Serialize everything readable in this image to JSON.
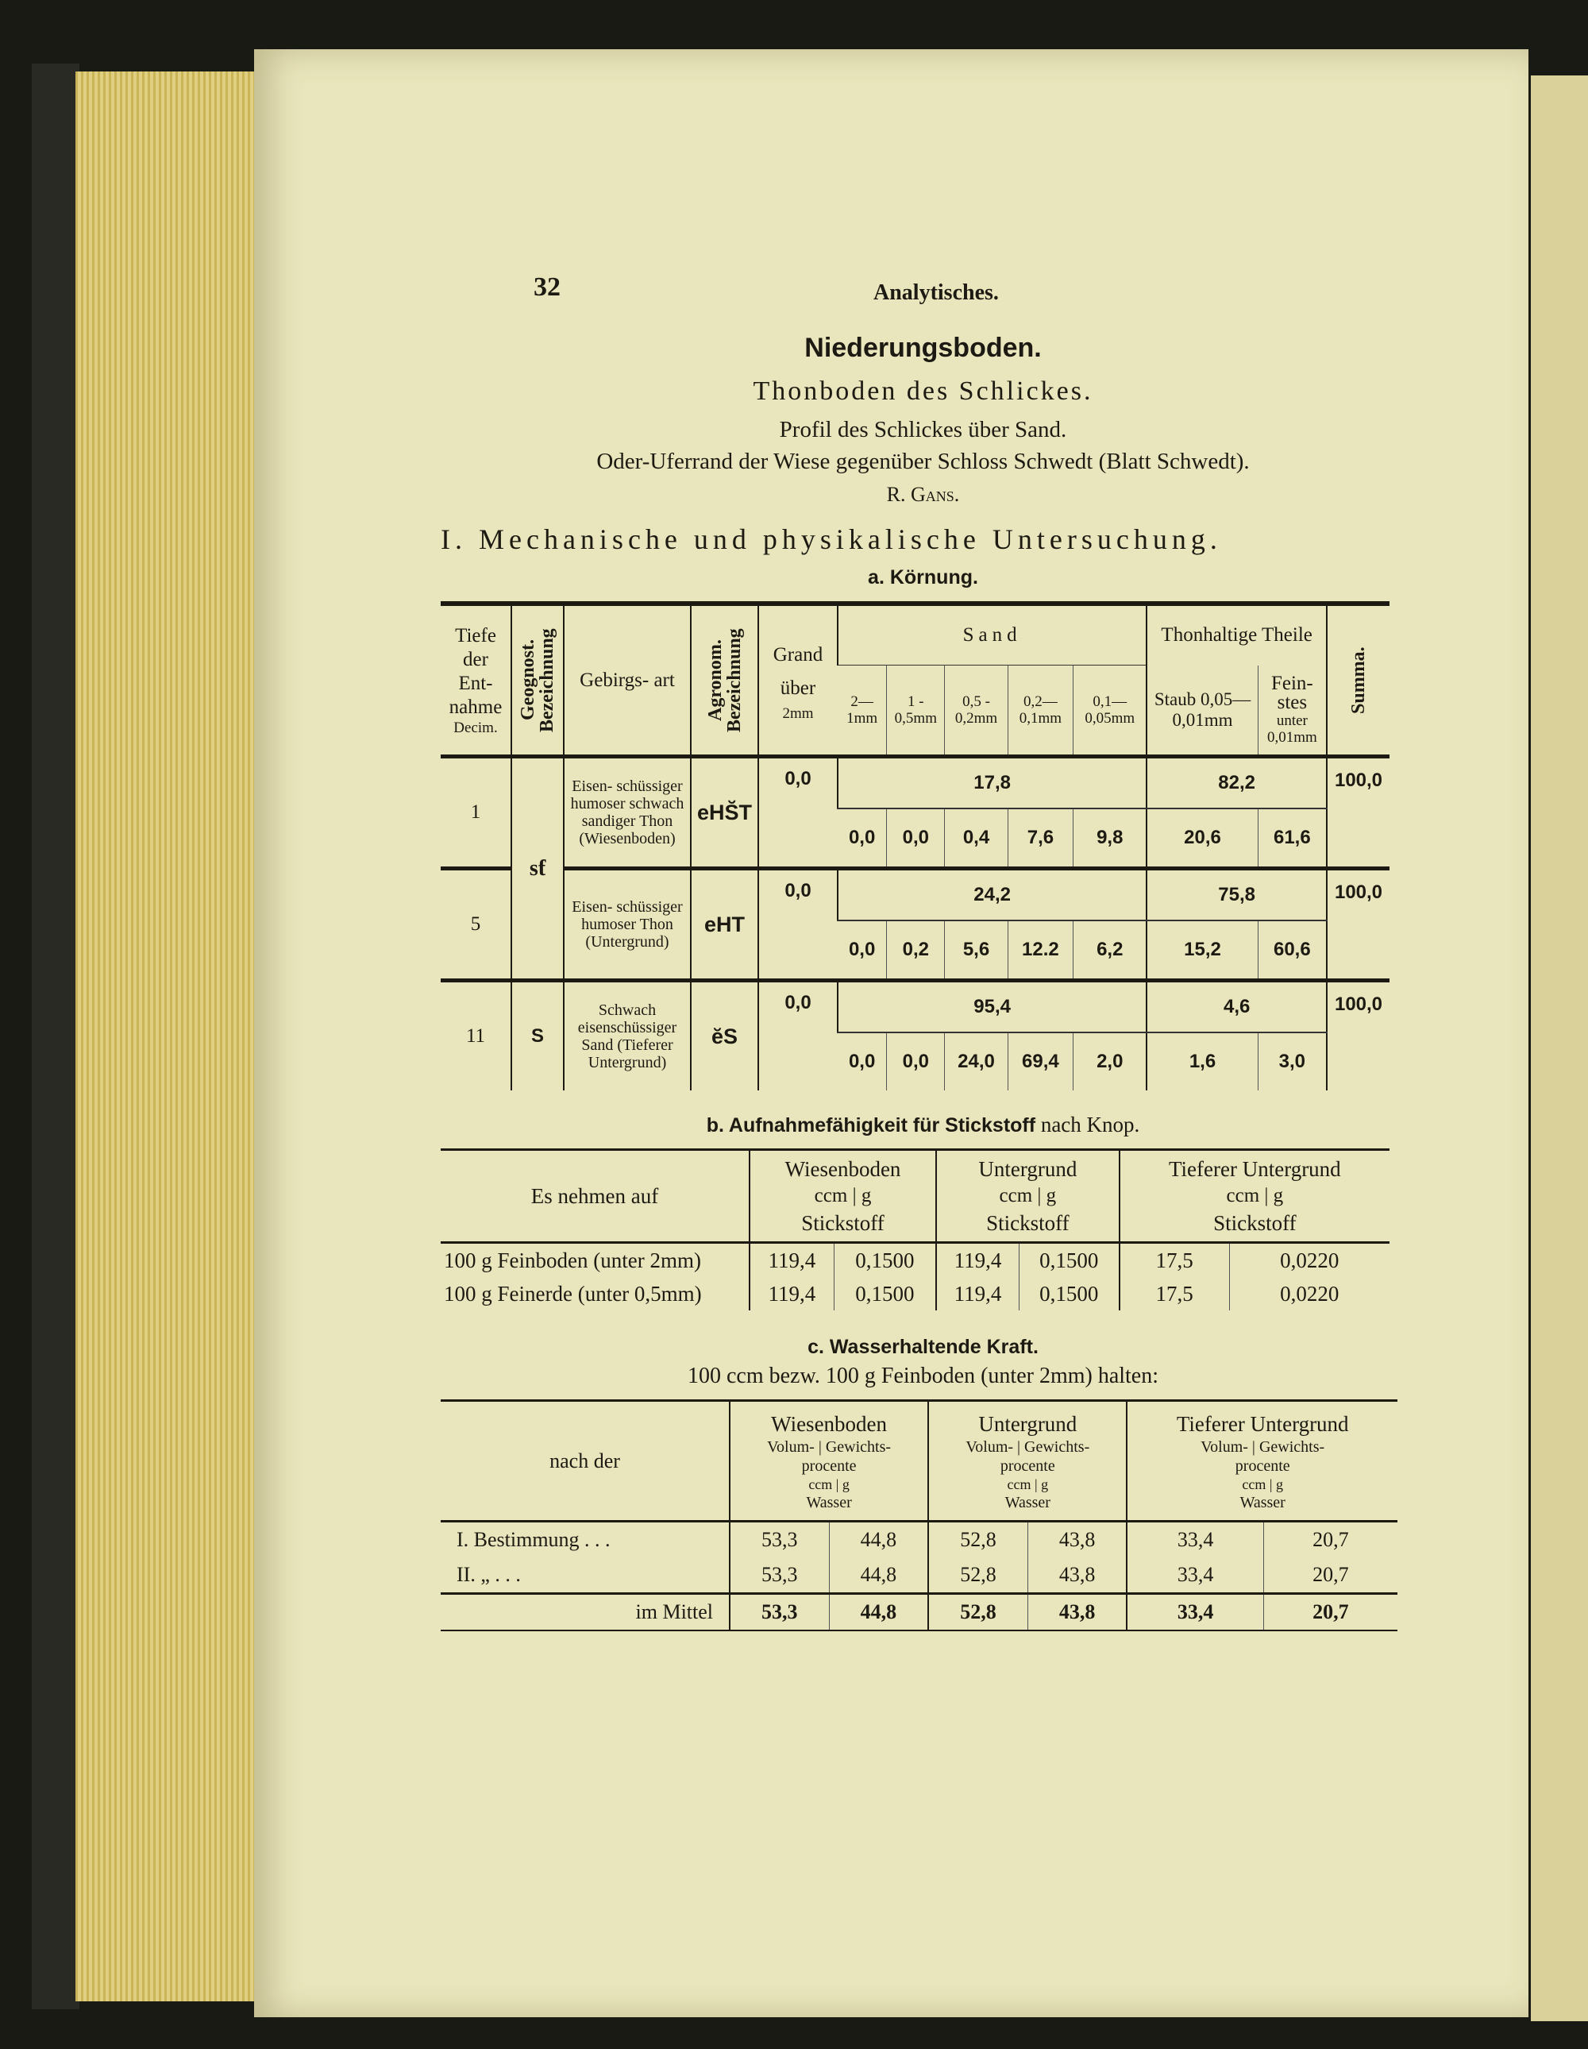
{
  "page_number": "32",
  "running_head": "Analytisches.",
  "title": "Niederungsboden.",
  "subtitle": "Thonboden des Schlickes.",
  "profile": "Profil des Schlickes über Sand.",
  "location": "Oder-Uferrand der Wiese gegenüber Schloss Schwedt (Blatt Schwedt).",
  "author": "R. Gans.",
  "section": "I. Mechanische und physikalische Untersuchung.",
  "koernung": {
    "heading": "a. Körnung.",
    "headers": {
      "tiefe": "Tiefe der Ent- nahme",
      "decim": "Decim.",
      "geognost": "Geognost. Bezeichnung",
      "gebirgsart": "Gebirgs- art",
      "agronom": "Agronom. Bezeichnung",
      "grand": "Grand über",
      "grand_unit": "2mm",
      "sand": "Sand",
      "sand_cols": [
        "2— 1mm",
        "1 - 0,5mm",
        "0,5 - 0,2mm",
        "0,2— 0,1mm",
        "0,1— 0,05mm"
      ],
      "thon": "Thonhaltige Theile",
      "staub": "Staub 0,05— 0,01mm",
      "feinstes": "Fein- stes",
      "feinstes_unter": "unter",
      "feinstes_unit": "0,01mm",
      "summa": "Summa."
    },
    "geognost_merged": "sƭ",
    "rows": [
      {
        "tiefe": "1",
        "gebirgsart": "Eisen- schüssiger humoser schwach sandiger Thon (Wiesenboden)",
        "agronom": "eHS̆T",
        "grand": "0,0",
        "sand_total": "17,8",
        "thon_total": "82,2",
        "summa": "100,0",
        "sand": [
          "0,0",
          "0,0",
          "0,4",
          "7,6",
          "9,8"
        ],
        "thon": [
          "20,6",
          "61,6"
        ]
      },
      {
        "tiefe": "5",
        "gebirgsart": "Eisen- schüssiger humoser Thon (Untergrund)",
        "agronom": "eHT",
        "grand": "0,0",
        "sand_total": "24,2",
        "thon_total": "75,8",
        "summa": "100,0",
        "sand": [
          "0,0",
          "0,2",
          "5,6",
          "12.2",
          "6,2"
        ],
        "thon": [
          "15,2",
          "60,6"
        ]
      },
      {
        "tiefe": "11",
        "geognost": "S",
        "gebirgsart": "Schwach eisenschüssiger Sand (Tieferer Untergrund)",
        "agronom": "ĕS",
        "grand": "0,0",
        "sand_total": "95,4",
        "thon_total": "4,6",
        "summa": "100,0",
        "sand": [
          "0,0",
          "0,0",
          "24,0",
          "69,4",
          "2,0"
        ],
        "thon": [
          "1,6",
          "3,0"
        ]
      }
    ]
  },
  "stickstoff": {
    "heading": "b. Aufnahmefähigkeit für Stickstoff",
    "heading_tail": "nach Knop.",
    "first_header": "Es nehmen auf",
    "groups": [
      "Wiesenboden",
      "Untergrund",
      "Tieferer Untergrund"
    ],
    "units": [
      "ccm",
      "g"
    ],
    "unit_label": "Stickstoff",
    "rows": [
      {
        "label": "100 g Feinboden (unter 2mm)",
        "values": [
          "119,4",
          "0,1500",
          "119,4",
          "0,1500",
          "17,5",
          "0,0220"
        ]
      },
      {
        "label": "100 g Feinerde (unter 0,5mm)",
        "values": [
          "119,4",
          "0,1500",
          "119,4",
          "0,1500",
          "17,5",
          "0,0220"
        ]
      }
    ]
  },
  "wasser": {
    "heading": "c. Wasserhaltende Kraft.",
    "intro": "100 ccm bezw. 100 g Feinboden (unter 2mm) halten:",
    "first_header": "nach der",
    "groups": [
      "Wiesenboden",
      "Untergrund",
      "Tieferer Untergrund"
    ],
    "subhead": [
      "Volum-",
      "Gewichts-"
    ],
    "procente": "procente",
    "units": [
      "ccm",
      "g"
    ],
    "unit_label": "Wasser",
    "rows": [
      {
        "label": "I. Bestimmung . . .",
        "values": [
          "53,3",
          "44,8",
          "52,8",
          "43,8",
          "33,4",
          "20,7"
        ]
      },
      {
        "label": "II.      „       . . .",
        "values": [
          "53,3",
          "44,8",
          "52,8",
          "43,8",
          "33,4",
          "20,7"
        ]
      },
      {
        "label": "im Mittel",
        "values": [
          "53,3",
          "44,8",
          "52,8",
          "43,8",
          "33,4",
          "20,7"
        ]
      }
    ]
  }
}
